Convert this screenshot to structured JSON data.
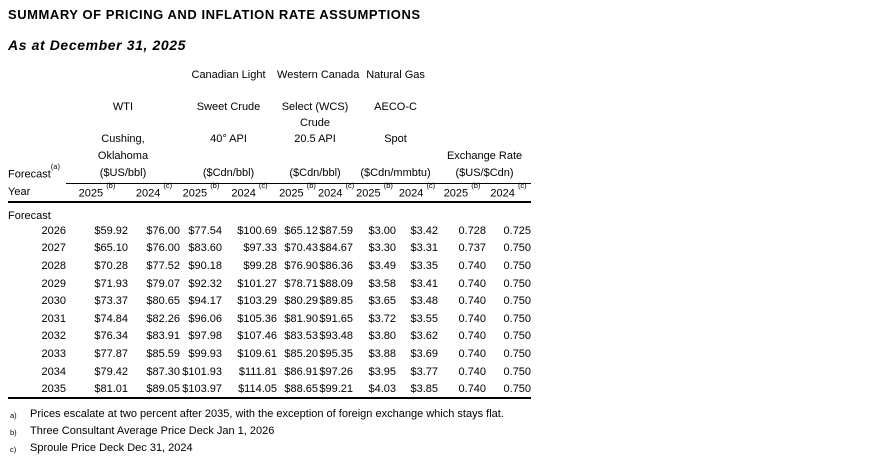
{
  "title": "SUMMARY OF PRICING AND INFLATION RATE ASSUMPTIONS",
  "subtitle": "As at December 31, 2025",
  "table": {
    "corner": {
      "forecast_label": "Forecast",
      "forecast_sup": "(a)",
      "year_label": "Year"
    },
    "groups": [
      {
        "line1": "",
        "line2": "WTI",
        "line3": "",
        "line4": "Cushing,",
        "line5": "Oklahoma",
        "unit": "($US/bbl)"
      },
      {
        "line1": "Canadian Light",
        "line2": "Sweet Crude",
        "line3": "",
        "line4": "40° API",
        "line5": "",
        "unit": "($Cdn/bbl)"
      },
      {
        "line1": "Western Canada",
        "line2": "Select (WCS)",
        "line3": "Crude",
        "line4": "20.5 API",
        "line5": "",
        "unit": "($Cdn/bbl)"
      },
      {
        "line1": "Natural Gas",
        "line2": "AECO-C",
        "line3": "",
        "line4": "Spot",
        "line5": "",
        "unit": "($Cdn/mmbtu)"
      },
      {
        "line1": "",
        "line2": "",
        "line3": "",
        "line4": "",
        "line5": "Exchange Rate",
        "unit": "($US/$Cdn)"
      }
    ],
    "year_header": {
      "col2025": "2025",
      "sup2025": "(b)",
      "col2024": "2024",
      "sup2024": "(c)"
    },
    "section_label": "Forecast",
    "rows": [
      {
        "year": "2026",
        "values": [
          "$59.92",
          "$76.00",
          "$77.54",
          "$100.69",
          "$65.12",
          "$87.59",
          "$3.00",
          "$3.42",
          "0.728",
          "0.725"
        ]
      },
      {
        "year": "2027",
        "values": [
          "$65.10",
          "$76.00",
          "$83.60",
          "$97.33",
          "$70.43",
          "$84.67",
          "$3.30",
          "$3.31",
          "0.737",
          "0.750"
        ]
      },
      {
        "year": "2028",
        "values": [
          "$70.28",
          "$77.52",
          "$90.18",
          "$99.28",
          "$76.90",
          "$86.36",
          "$3.49",
          "$3.35",
          "0.740",
          "0.750"
        ]
      },
      {
        "year": "2029",
        "values": [
          "$71.93",
          "$79.07",
          "$92.32",
          "$101.27",
          "$78.71",
          "$88.09",
          "$3.58",
          "$3.41",
          "0.740",
          "0.750"
        ]
      },
      {
        "year": "2030",
        "values": [
          "$73.37",
          "$80.65",
          "$94.17",
          "$103.29",
          "$80.29",
          "$89.85",
          "$3.65",
          "$3.48",
          "0.740",
          "0.750"
        ]
      },
      {
        "year": "2031",
        "values": [
          "$74.84",
          "$82.26",
          "$96.06",
          "$105.36",
          "$81.90",
          "$91.65",
          "$3.72",
          "$3.55",
          "0.740",
          "0.750"
        ]
      },
      {
        "year": "2032",
        "values": [
          "$76.34",
          "$83.91",
          "$97.98",
          "$107.46",
          "$83.53",
          "$93.48",
          "$3.80",
          "$3.62",
          "0.740",
          "0.750"
        ]
      },
      {
        "year": "2033",
        "values": [
          "$77.87",
          "$85.59",
          "$99.93",
          "$109.61",
          "$85.20",
          "$95.35",
          "$3.88",
          "$3.69",
          "0.740",
          "0.750"
        ]
      },
      {
        "year": "2034",
        "values": [
          "$79.42",
          "$87.30",
          "$101.93",
          "$111.81",
          "$86.91",
          "$97.26",
          "$3.95",
          "$3.77",
          "0.740",
          "0.750"
        ]
      },
      {
        "year": "2035",
        "values": [
          "$81.01",
          "$89.05",
          "$103.97",
          "$114.05",
          "$88.65",
          "$99.21",
          "$4.03",
          "$3.85",
          "0.740",
          "0.750"
        ]
      }
    ]
  },
  "footnotes": [
    {
      "marker": "a)",
      "text": "Prices escalate at two percent after 2035, with the exception of foreign exchange which stays flat."
    },
    {
      "marker": "b)",
      "text": "Three Consultant Average Price Deck Jan 1, 2026"
    },
    {
      "marker": "c)",
      "text": "Sproule Price Deck Dec 31, 2024"
    }
  ]
}
